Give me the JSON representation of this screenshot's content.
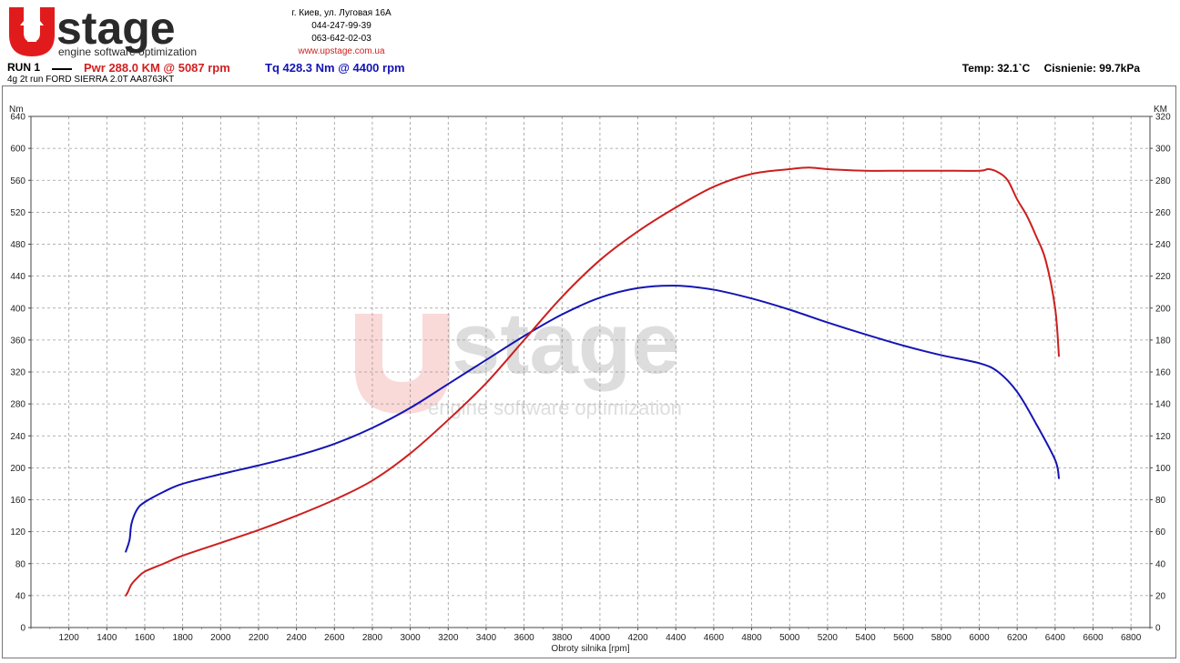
{
  "header": {
    "brand": "stage",
    "brand_tagline": "engine software optimization",
    "address": "г. Киев, ул. Луговая 16А",
    "phone1": "044-247-99-39",
    "phone2": "063-642-02-03",
    "website": "www.upstage.com.ua"
  },
  "run": {
    "label": "RUN 1",
    "power": "Pwr  288.0 KM @ 5087 rpm",
    "torque": "Tq 428.3 Nm @ 4400 rpm",
    "description": "4g 2t run FORD SIERRA 2.0T AA8763KT"
  },
  "conditions": {
    "temp": "Temp: 32.1`C",
    "pressure": "Cisnienie: 99.7kPa"
  },
  "colors": {
    "power": "#cc1f1f",
    "torque": "#1414b4",
    "grid": "#999999",
    "brand": "#e11b1b"
  },
  "chart_data": {
    "type": "line",
    "xlabel": "Obroty silnika [rpm]",
    "ylabel_left": "Nm",
    "ylabel_right": "KM",
    "xlim": [
      1000,
      6900
    ],
    "ylim_left": [
      0,
      640
    ],
    "ylim_right": [
      0,
      320
    ],
    "x_ticks": [
      1200,
      1400,
      1600,
      1800,
      2000,
      2200,
      2400,
      2600,
      2800,
      3000,
      3200,
      3400,
      3600,
      3800,
      4000,
      4200,
      4400,
      4600,
      4800,
      5000,
      5200,
      5400,
      5600,
      5800,
      6000,
      6200,
      6400,
      6600,
      6800
    ],
    "y_ticks_left": [
      0,
      40,
      80,
      120,
      160,
      200,
      240,
      280,
      320,
      360,
      400,
      440,
      480,
      520,
      560,
      600,
      640
    ],
    "y_ticks_right": [
      0,
      20,
      40,
      60,
      80,
      100,
      120,
      140,
      160,
      180,
      200,
      220,
      240,
      260,
      280,
      300,
      320
    ],
    "grid": true,
    "series": [
      {
        "name": "Tq",
        "axis": "left",
        "color": "#1414b4",
        "x": [
          1500,
          1520,
          1530,
          1560,
          1600,
          1700,
          1800,
          2000,
          2200,
          2400,
          2600,
          2800,
          3000,
          3200,
          3400,
          3600,
          3800,
          4000,
          4200,
          4400,
          4600,
          4800,
          5000,
          5200,
          5400,
          5600,
          5800,
          6000,
          6100,
          6200,
          6300,
          6400,
          6420
        ],
        "y": [
          95,
          110,
          130,
          148,
          157,
          170,
          180,
          192,
          203,
          215,
          230,
          250,
          275,
          305,
          335,
          365,
          392,
          413,
          425,
          428,
          423,
          412,
          398,
          382,
          367,
          353,
          341,
          331,
          320,
          295,
          255,
          210,
          187
        ]
      },
      {
        "name": "Pwr",
        "axis": "right",
        "color": "#cc1f1f",
        "x": [
          1500,
          1510,
          1530,
          1560,
          1600,
          1700,
          1800,
          2000,
          2200,
          2400,
          2600,
          2800,
          3000,
          3200,
          3400,
          3600,
          3800,
          4000,
          4200,
          4400,
          4600,
          4800,
          5000,
          5100,
          5200,
          5400,
          5600,
          5800,
          6000,
          6050,
          6100,
          6150,
          6200,
          6250,
          6300,
          6350,
          6400,
          6420
        ],
        "y": [
          20,
          22,
          27,
          31,
          35,
          40,
          45,
          53,
          61,
          70,
          80,
          92,
          109,
          130,
          153,
          180,
          207,
          230,
          248,
          263,
          276,
          284,
          287,
          288,
          287,
          286,
          286,
          286,
          286,
          287,
          285,
          280,
          268,
          258,
          245,
          230,
          200,
          170
        ]
      }
    ]
  }
}
